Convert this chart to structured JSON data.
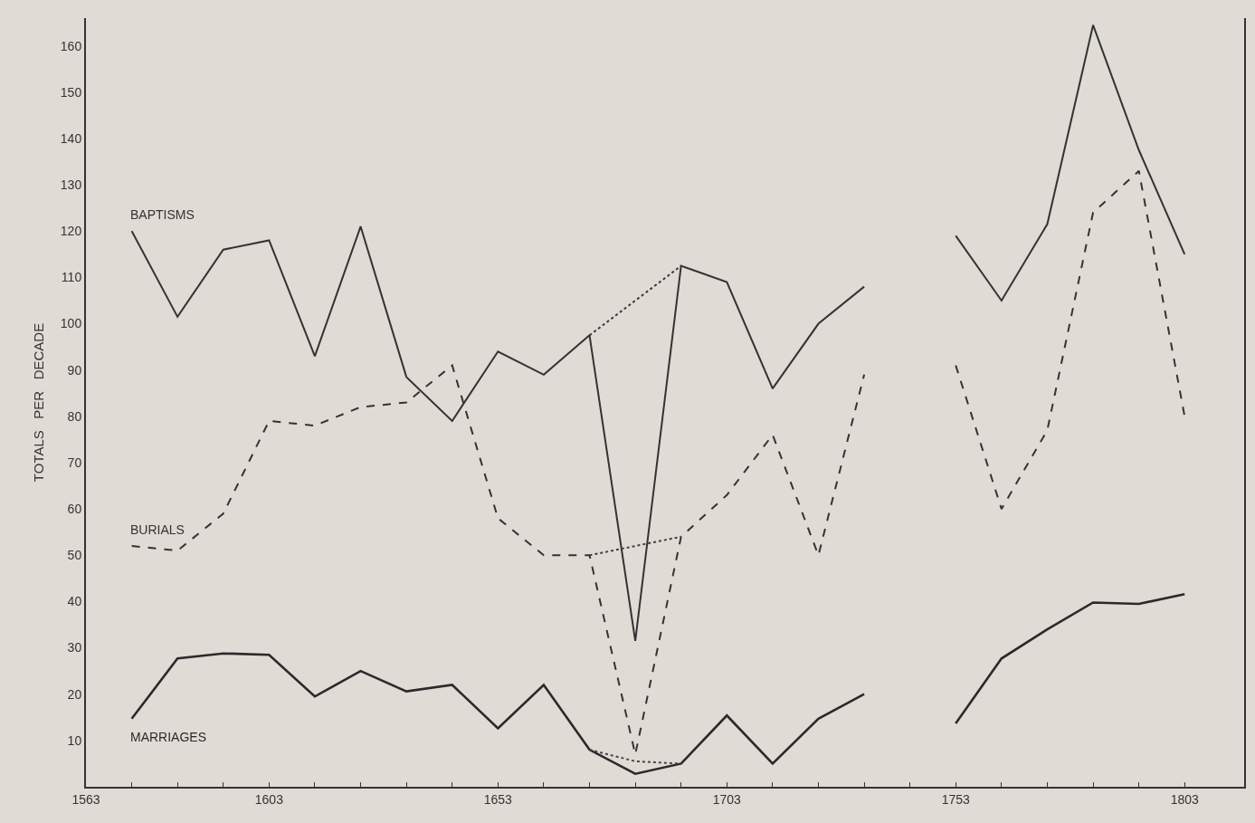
{
  "chart_data": {
    "type": "line",
    "ylabel": "TOTALS   PER   DECADE",
    "x": [
      1573,
      1583,
      1593,
      1603,
      1613,
      1623,
      1633,
      1643,
      1653,
      1663,
      1673,
      1683,
      1693,
      1703,
      1713,
      1723,
      1733,
      1743,
      1753,
      1763,
      1773,
      1783,
      1793,
      1803
    ],
    "series": [
      {
        "name": "BAPTISMS",
        "color": "#333333",
        "line_style": "solid",
        "values": [
          120,
          101.5,
          116,
          118,
          93,
          121,
          88.5,
          79,
          94,
          89,
          97.5,
          31.5,
          112.5,
          109,
          86,
          100,
          108,
          null,
          119,
          105,
          121.5,
          164.5,
          137.5,
          115
        ]
      },
      {
        "name": "BURIALS",
        "color": "#333333",
        "line_style": "dashed",
        "values": [
          52,
          51,
          59,
          79,
          78,
          82,
          83,
          91,
          58,
          50,
          50,
          7,
          54,
          63,
          76,
          50,
          89,
          null,
          91,
          60,
          77,
          124,
          133,
          80
        ]
      },
      {
        "name": "MARRIAGES",
        "color": "#2a2a2a",
        "line_style": "solid",
        "values": [
          14.7,
          27.7,
          28.8,
          28.5,
          19.5,
          25,
          20.6,
          22,
          12.6,
          22,
          8,
          2.8,
          5,
          15.4,
          5,
          14.7,
          20,
          null,
          13.7,
          27.7,
          34,
          39.8,
          39.5,
          41.6
        ]
      },
      {
        "color": "#3a3a3a",
        "line_style": "dotted",
        "x": [
          1673,
          1683,
          1693
        ],
        "values": [
          97.5,
          105,
          112.5
        ]
      },
      {
        "color": "#404040",
        "line_style": "dotted",
        "x": [
          1673,
          1683,
          1693
        ],
        "values": [
          50,
          52,
          54
        ]
      },
      {
        "color": "#464646",
        "line_style": "dotted",
        "x": [
          1673,
          1683,
          1693
        ],
        "values": [
          8,
          5.5,
          5
        ]
      }
    ],
    "xlim": [
      1563,
      1816
    ],
    "xticks": [
      1563,
      {
        "value": 1573,
        "label": null
      },
      {
        "value": 1583,
        "label": null
      },
      {
        "value": 1593,
        "label": null
      },
      1603,
      {
        "value": 1613,
        "label": null
      },
      {
        "value": 1623,
        "label": null
      },
      {
        "value": 1633,
        "label": null
      },
      {
        "value": 1643,
        "label": null
      },
      1653,
      {
        "value": 1663,
        "label": null
      },
      {
        "value": 1673,
        "label": null
      },
      {
        "value": 1683,
        "label": null
      },
      {
        "value": 1693,
        "label": null
      },
      1703,
      {
        "value": 1713,
        "label": null
      },
      {
        "value": 1723,
        "label": null
      },
      {
        "value": 1733,
        "label": null
      },
      {
        "value": 1743,
        "label": null
      },
      1753,
      {
        "value": 1763,
        "label": null
      },
      {
        "value": 1773,
        "label": null
      },
      {
        "value": 1783,
        "label": null
      },
      {
        "value": 1793,
        "label": null
      },
      1803
    ],
    "ylim": [
      0,
      166
    ],
    "yticks": [
      10,
      20,
      30,
      40,
      50,
      60,
      70,
      80,
      90,
      100,
      110,
      120,
      130,
      140,
      150,
      160
    ],
    "grid": false,
    "legend": false,
    "marker": "none"
  }
}
